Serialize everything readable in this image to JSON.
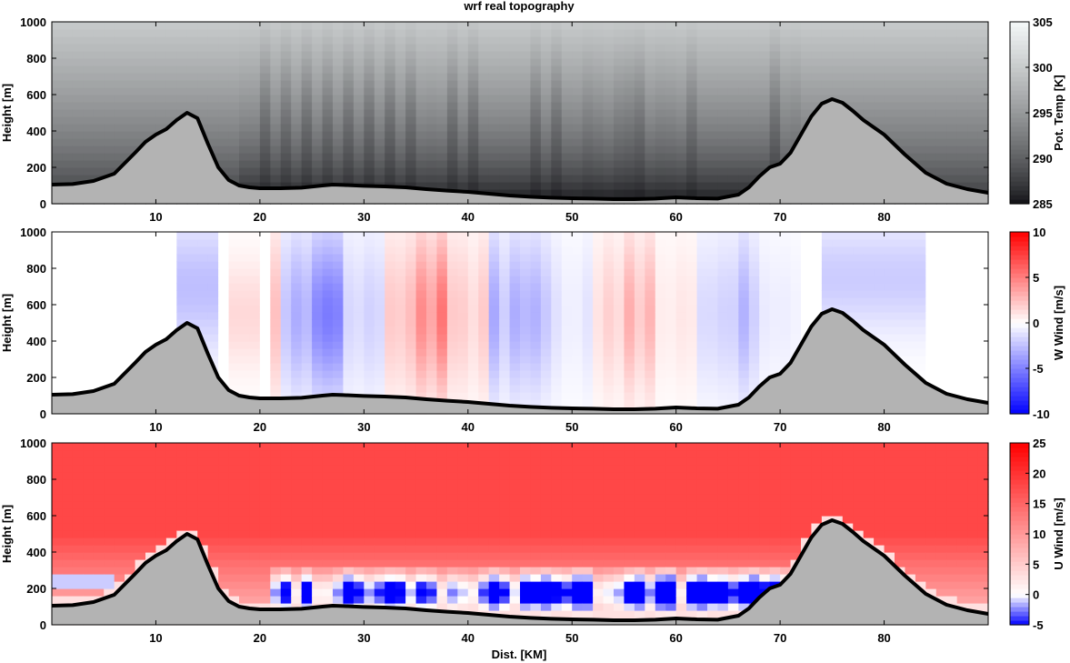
{
  "title": "wrf real topography",
  "xlabel": "Dist. [KM]",
  "colors": {
    "terrain": "#b3b3b3",
    "terrain_edge": "#000000",
    "pot_low": "#0c0c10",
    "pot_high": "#f4f8f8",
    "wind_neg": "#0000ff",
    "wind_pos": "#ff0000",
    "wind_zero": "#ffffff"
  },
  "chart_data": [
    {
      "id": "pot-temp",
      "type": "heatmap",
      "ylabel": "Height [m]",
      "colorbar_label": "Pot. Temp [K]",
      "colorbar_range": [
        285,
        305
      ],
      "colorbar_ticks": [
        "285",
        "290",
        "295",
        "300",
        "305"
      ],
      "xlim": [
        0,
        90
      ],
      "ylim": [
        0,
        1000
      ],
      "xticks": [
        "10",
        "20",
        "30",
        "40",
        "50",
        "60",
        "70",
        "80"
      ],
      "yticks": [
        "0",
        "200",
        "400",
        "600",
        "800",
        "1000"
      ]
    },
    {
      "id": "w-wind",
      "type": "heatmap",
      "ylabel": "Height [m]",
      "colorbar_label": "W Wind [m/s]",
      "colorbar_range": [
        -10,
        10
      ],
      "colorbar_ticks": [
        "-10",
        "-5",
        "0",
        "5",
        "10"
      ],
      "xlim": [
        0,
        90
      ],
      "ylim": [
        0,
        1000
      ],
      "xticks": [
        "10",
        "20",
        "30",
        "40",
        "50",
        "60",
        "70",
        "80"
      ],
      "yticks": [
        "0",
        "200",
        "400",
        "600",
        "800",
        "1000"
      ]
    },
    {
      "id": "u-wind",
      "type": "heatmap",
      "ylabel": "Height [m]",
      "colorbar_label": "U Wind [m/s]",
      "colorbar_range": [
        -5,
        25
      ],
      "colorbar_ticks": [
        "-5",
        "0",
        "5",
        "10",
        "15",
        "20",
        "25"
      ],
      "xlim": [
        0,
        90
      ],
      "ylim": [
        0,
        1000
      ],
      "xticks": [
        "10",
        "20",
        "30",
        "40",
        "50",
        "60",
        "70",
        "80"
      ],
      "yticks": [
        "0",
        "200",
        "400",
        "600",
        "800",
        "1000"
      ]
    }
  ],
  "terrain_profile": {
    "x": [
      0,
      2,
      4,
      6,
      8,
      9,
      10,
      11,
      12,
      13,
      14,
      15,
      16,
      17,
      18,
      19,
      20,
      22,
      24,
      26,
      27,
      28,
      30,
      32,
      34,
      36,
      38,
      40,
      42,
      44,
      46,
      48,
      50,
      52,
      54,
      56,
      58,
      60,
      62,
      64,
      66,
      67,
      68,
      69,
      70,
      71,
      72,
      73,
      74,
      75,
      76,
      77,
      78,
      79,
      80,
      82,
      84,
      86,
      88,
      90
    ],
    "height": [
      105,
      108,
      125,
      165,
      280,
      340,
      380,
      410,
      460,
      500,
      470,
      330,
      200,
      130,
      100,
      90,
      85,
      85,
      88,
      100,
      105,
      103,
      98,
      95,
      90,
      80,
      72,
      65,
      55,
      45,
      38,
      33,
      30,
      28,
      25,
      25,
      28,
      35,
      30,
      28,
      50,
      90,
      150,
      200,
      220,
      280,
      380,
      480,
      550,
      575,
      555,
      510,
      460,
      420,
      380,
      270,
      170,
      110,
      80,
      60
    ]
  }
}
